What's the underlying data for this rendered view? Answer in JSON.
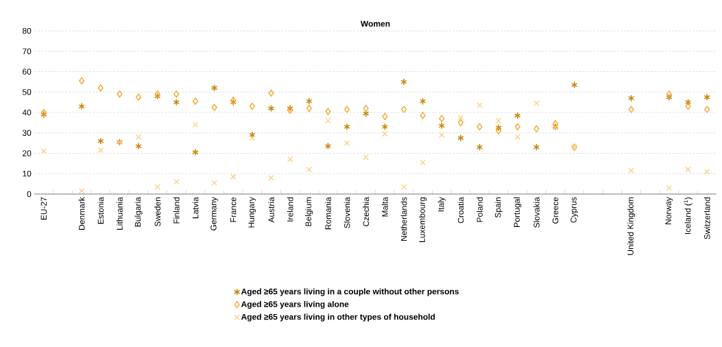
{
  "chart_data": {
    "type": "scatter",
    "title": "Women",
    "categories": [
      "EU-27",
      null,
      "Denmark",
      "Estonia",
      "Lithuania",
      "Bulgaria",
      "Sweden",
      "Finland",
      "Latvia",
      "Germany",
      "France",
      "Hungary",
      "Austria",
      "Ireland",
      "Belgium",
      "Romania",
      "Slovenia",
      "Czechia",
      "Malta",
      "Netherlands",
      "Luxembourg",
      "Italy",
      "Croatia",
      "Poland",
      "Spain",
      "Portugal",
      "Slovakia",
      "Greece",
      "Cyprus",
      null,
      null,
      "United Kingdom",
      null,
      "Norway",
      "Iceland ($^{1}$)",
      "Switzerland"
    ],
    "series": [
      {
        "name": "Aged ≥65 years living in a couple without other persons",
        "color": "#c8860a",
        "marker": "cross",
        "values": [
          39,
          null,
          43,
          26,
          25.5,
          23.5,
          48,
          45,
          20.5,
          52,
          45,
          29,
          42,
          42,
          45.5,
          23.5,
          33,
          39.5,
          33,
          55,
          45.5,
          33.5,
          27.5,
          23,
          32.5,
          38.5,
          23,
          33,
          53.5,
          null,
          null,
          47,
          null,
          47.5,
          45,
          47.5
        ]
      },
      {
        "name": "Aged ≥65 years living alone",
        "color": "#f5a01e",
        "marker": "diamond",
        "values": [
          40,
          null,
          55.5,
          52,
          49,
          47.5,
          49,
          49,
          45.5,
          42.5,
          46,
          43,
          49.5,
          41,
          42,
          40.5,
          41.5,
          42,
          38,
          41.5,
          38.5,
          37,
          35,
          33,
          31,
          33,
          32,
          34.5,
          23,
          null,
          null,
          41.5,
          null,
          49,
          43,
          41.5
        ]
      },
      {
        "name": "Aged ≥65 years living in other types of household",
        "color": "#ffcc80",
        "marker": "cross",
        "values": [
          21,
          null,
          1.5,
          21.5,
          25.5,
          28,
          3.5,
          6,
          34,
          5.5,
          8.5,
          27.5,
          8,
          17,
          12,
          36,
          25,
          18,
          29.5,
          3.5,
          15.5,
          29,
          37.5,
          43.5,
          36,
          28,
          44.5,
          32.5,
          23,
          null,
          null,
          11.5,
          null,
          3,
          12,
          11
        ]
      }
    ],
    "ylim": [
      0,
      80
    ],
    "yticks": [
      0,
      10,
      20,
      30,
      40,
      50,
      60,
      70,
      80
    ],
    "grid": "y",
    "legend": "bottom"
  }
}
